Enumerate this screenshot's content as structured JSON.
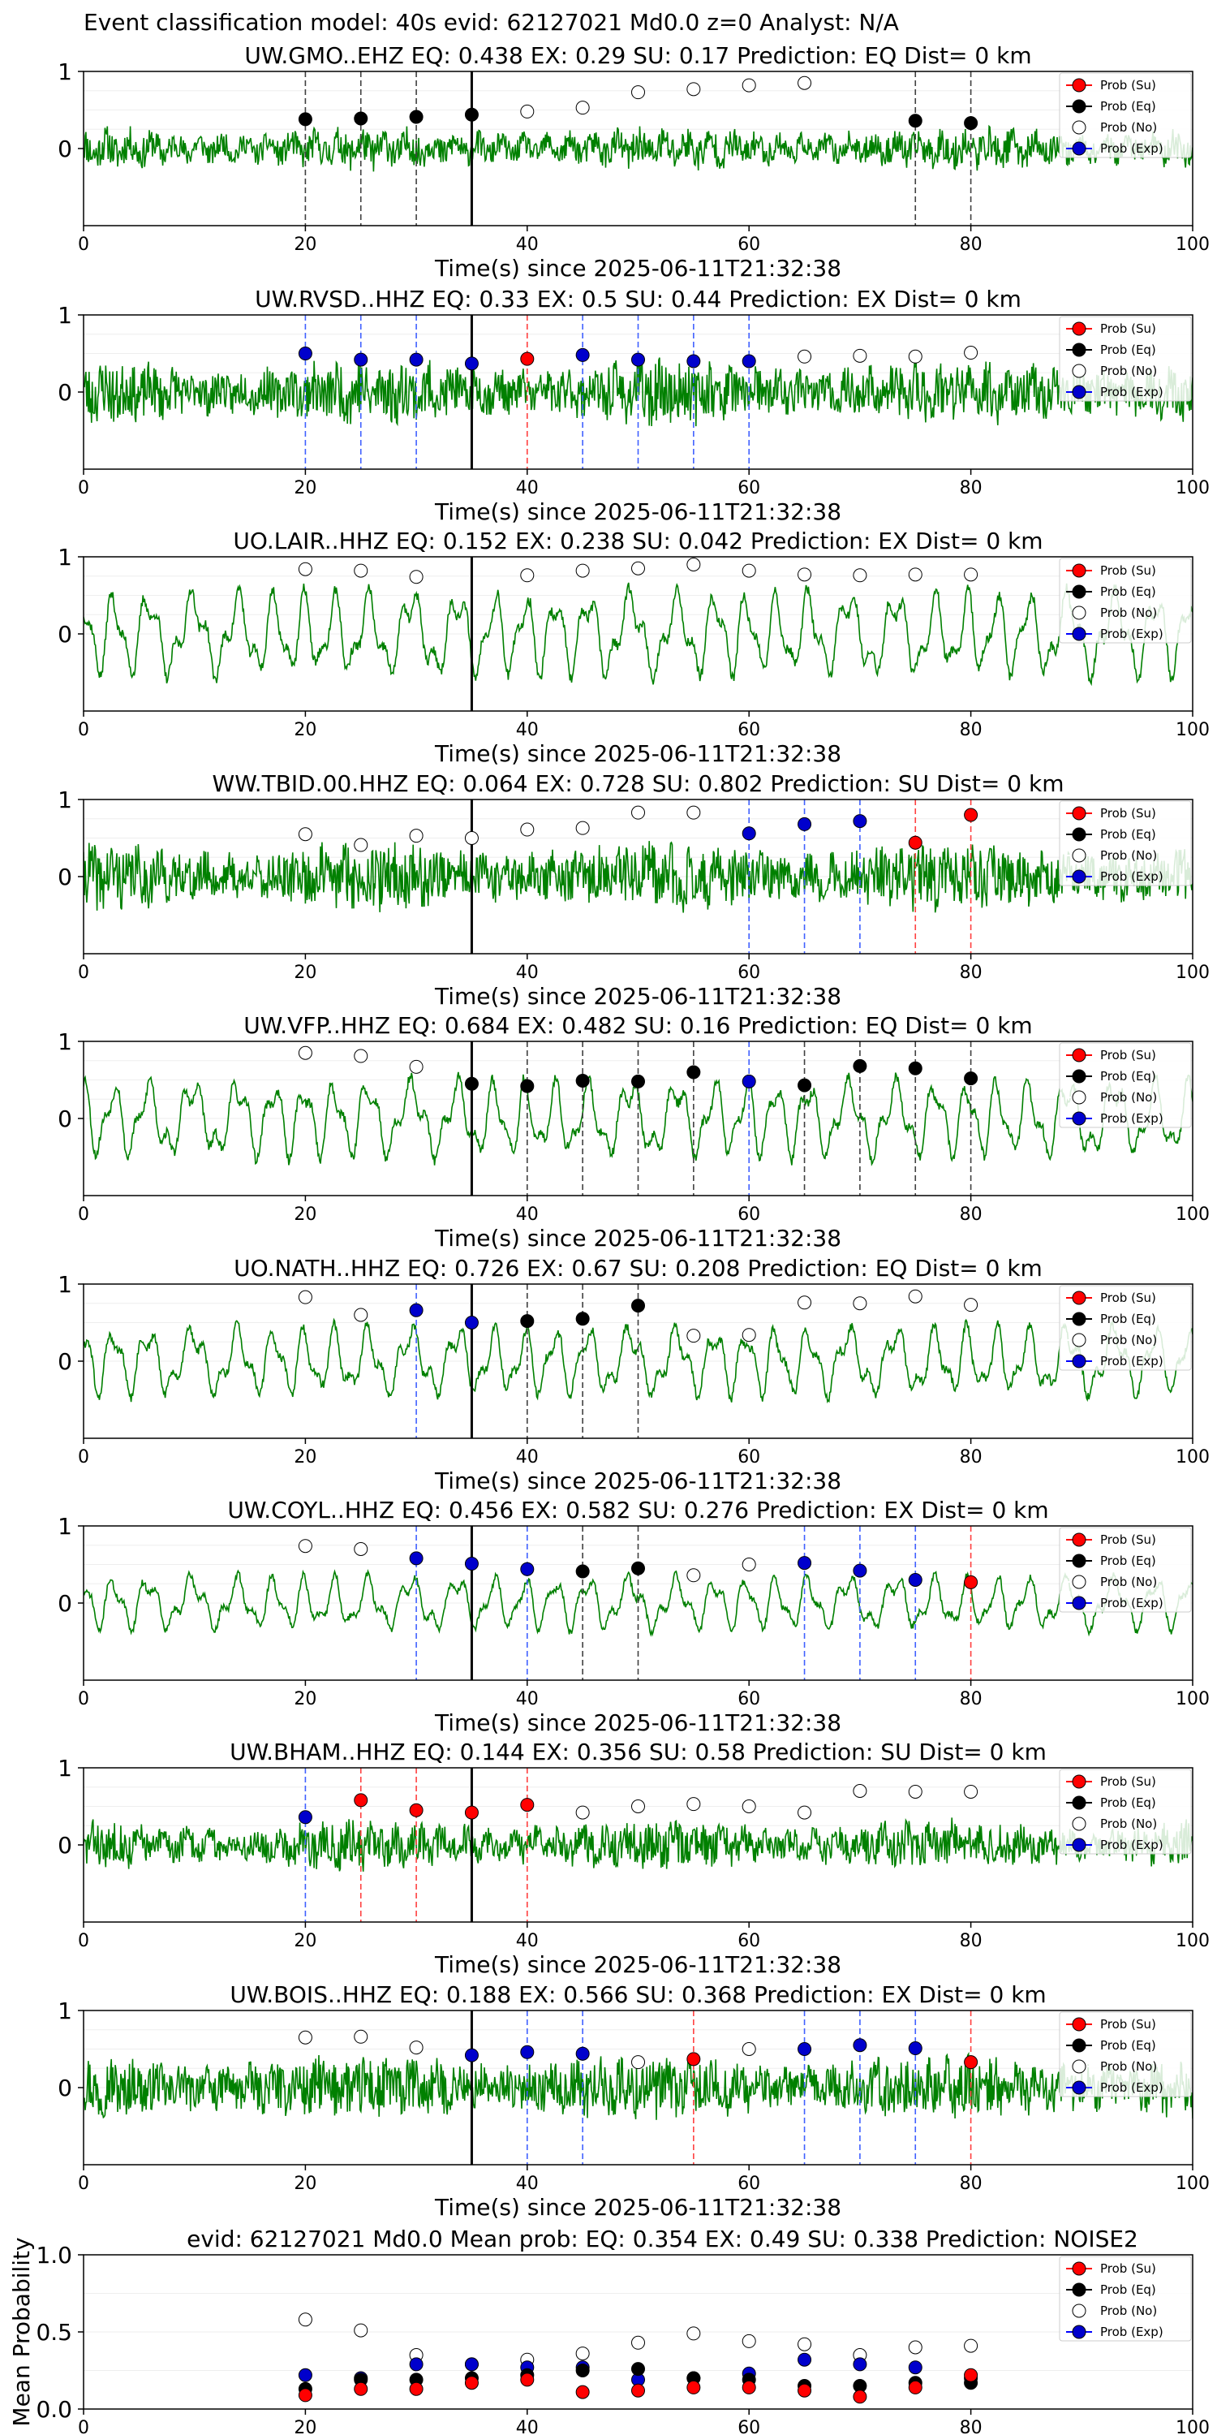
{
  "figure": {
    "suptitle": "Event classification model: 40s evid: 62127021 Md0.0 z=0 Analyst: N/A",
    "colors": {
      "waveform": "#008000",
      "su": "#ff0000",
      "eq": "#000000",
      "no": "#ffffff",
      "exp": "#0000cc",
      "origin_line": "#000000"
    }
  },
  "chart_data": [
    {
      "type": "line",
      "station": "UW.GMO..EHZ",
      "title": "UW.GMO..EHZ   EQ: 0.438  EX: 0.29  SU: 0.17   Prediction: EQ    Dist= 0 km",
      "xlabel": "Time(s) since 2025-06-11T21:32:38",
      "xlim": [
        0,
        100
      ],
      "ylim": [
        -1,
        1
      ],
      "xticks": [
        "0",
        "20",
        "40",
        "60",
        "80",
        "100"
      ],
      "yticks": [
        "0",
        "1"
      ],
      "origin_time": 35,
      "waveform": {
        "style": "noise",
        "amp": 0.18,
        "seed": 11
      },
      "points": [
        {
          "x": 20,
          "y": 0.38,
          "cls": "eq"
        },
        {
          "x": 25,
          "y": 0.39,
          "cls": "eq"
        },
        {
          "x": 30,
          "y": 0.41,
          "cls": "eq"
        },
        {
          "x": 35,
          "y": 0.44,
          "cls": "eq"
        },
        {
          "x": 40,
          "y": 0.48,
          "cls": "no"
        },
        {
          "x": 45,
          "y": 0.53,
          "cls": "no"
        },
        {
          "x": 50,
          "y": 0.73,
          "cls": "no"
        },
        {
          "x": 55,
          "y": 0.77,
          "cls": "no"
        },
        {
          "x": 60,
          "y": 0.82,
          "cls": "no"
        },
        {
          "x": 65,
          "y": 0.85,
          "cls": "no"
        },
        {
          "x": 75,
          "y": 0.36,
          "cls": "eq"
        },
        {
          "x": 80,
          "y": 0.33,
          "cls": "eq"
        }
      ],
      "legend": [
        "Prob (Su)",
        "Prob (Eq)",
        "Prob (No)",
        "Prob (Exp)"
      ]
    },
    {
      "type": "line",
      "station": "UW.RVSD..HHZ",
      "title": "UW.RVSD..HHZ   EQ: 0.33  EX: 0.5  SU: 0.44   Prediction: EX    Dist= 0 km",
      "xlabel": "Time(s) since 2025-06-11T21:32:38",
      "xlim": [
        0,
        100
      ],
      "ylim": [
        -1,
        1
      ],
      "xticks": [
        "0",
        "20",
        "40",
        "60",
        "80",
        "100"
      ],
      "yticks": [
        "0",
        "1"
      ],
      "origin_time": 35,
      "waveform": {
        "style": "noise",
        "amp": 0.3,
        "seed": 23
      },
      "points": [
        {
          "x": 20,
          "y": 0.5,
          "cls": "exp"
        },
        {
          "x": 25,
          "y": 0.42,
          "cls": "exp"
        },
        {
          "x": 30,
          "y": 0.42,
          "cls": "exp"
        },
        {
          "x": 35,
          "y": 0.37,
          "cls": "exp"
        },
        {
          "x": 40,
          "y": 0.43,
          "cls": "su"
        },
        {
          "x": 45,
          "y": 0.48,
          "cls": "exp"
        },
        {
          "x": 50,
          "y": 0.42,
          "cls": "exp"
        },
        {
          "x": 55,
          "y": 0.4,
          "cls": "exp"
        },
        {
          "x": 60,
          "y": 0.4,
          "cls": "exp"
        },
        {
          "x": 65,
          "y": 0.46,
          "cls": "no"
        },
        {
          "x": 70,
          "y": 0.47,
          "cls": "no"
        },
        {
          "x": 75,
          "y": 0.46,
          "cls": "no"
        },
        {
          "x": 80,
          "y": 0.51,
          "cls": "no"
        }
      ],
      "legend": [
        "Prob (Su)",
        "Prob (Eq)",
        "Prob (No)",
        "Prob (Exp)"
      ]
    },
    {
      "type": "line",
      "station": "UO.LAIR..HHZ",
      "title": "UO.LAIR..HHZ   EQ: 0.152  EX: 0.238  SU: 0.042   Prediction: EX    Dist= 0 km",
      "xlabel": "Time(s) since 2025-06-11T21:32:38",
      "xlim": [
        0,
        100
      ],
      "ylim": [
        -1,
        1
      ],
      "xticks": [
        "0",
        "20",
        "40",
        "60",
        "80",
        "100"
      ],
      "yticks": [
        "0",
        "1"
      ],
      "origin_time": 35,
      "waveform": {
        "style": "wave",
        "amp": 0.55,
        "seed": 37
      },
      "points": [
        {
          "x": 20,
          "y": 0.84,
          "cls": "no"
        },
        {
          "x": 25,
          "y": 0.82,
          "cls": "no"
        },
        {
          "x": 30,
          "y": 0.74,
          "cls": "no"
        },
        {
          "x": 40,
          "y": 0.76,
          "cls": "no"
        },
        {
          "x": 45,
          "y": 0.82,
          "cls": "no"
        },
        {
          "x": 50,
          "y": 0.85,
          "cls": "no"
        },
        {
          "x": 55,
          "y": 0.9,
          "cls": "no"
        },
        {
          "x": 60,
          "y": 0.82,
          "cls": "no"
        },
        {
          "x": 65,
          "y": 0.77,
          "cls": "no"
        },
        {
          "x": 70,
          "y": 0.76,
          "cls": "no"
        },
        {
          "x": 75,
          "y": 0.77,
          "cls": "no"
        },
        {
          "x": 80,
          "y": 0.77,
          "cls": "no"
        }
      ],
      "legend": [
        "Prob (Su)",
        "Prob (Eq)",
        "Prob (No)",
        "Prob (Exp)"
      ]
    },
    {
      "type": "line",
      "station": "WW.TBID.00.HHZ",
      "title": "WW.TBID.00.HHZ   EQ: 0.064  EX: 0.728  SU: 0.802   Prediction: SU    Dist= 0 km",
      "xlabel": "Time(s) since 2025-06-11T21:32:38",
      "xlim": [
        0,
        100
      ],
      "ylim": [
        -1,
        1
      ],
      "xticks": [
        "0",
        "20",
        "40",
        "60",
        "80",
        "100"
      ],
      "yticks": [
        "0",
        "1"
      ],
      "origin_time": 35,
      "waveform": {
        "style": "noise",
        "amp": 0.32,
        "seed": 41
      },
      "points": [
        {
          "x": 20,
          "y": 0.55,
          "cls": "no"
        },
        {
          "x": 25,
          "y": 0.41,
          "cls": "no"
        },
        {
          "x": 30,
          "y": 0.53,
          "cls": "no"
        },
        {
          "x": 35,
          "y": 0.5,
          "cls": "no"
        },
        {
          "x": 40,
          "y": 0.61,
          "cls": "no"
        },
        {
          "x": 45,
          "y": 0.63,
          "cls": "no"
        },
        {
          "x": 50,
          "y": 0.83,
          "cls": "no"
        },
        {
          "x": 55,
          "y": 0.83,
          "cls": "no"
        },
        {
          "x": 60,
          "y": 0.56,
          "cls": "exp"
        },
        {
          "x": 65,
          "y": 0.68,
          "cls": "exp"
        },
        {
          "x": 70,
          "y": 0.72,
          "cls": "exp"
        },
        {
          "x": 75,
          "y": 0.44,
          "cls": "su"
        },
        {
          "x": 80,
          "y": 0.8,
          "cls": "su"
        }
      ],
      "legend": [
        "Prob (Su)",
        "Prob (Eq)",
        "Prob (No)",
        "Prob (Exp)"
      ]
    },
    {
      "type": "line",
      "station": "UW.VFP..HHZ",
      "title": "UW.VFP..HHZ   EQ: 0.684  EX: 0.482  SU: 0.16   Prediction: EQ    Dist= 0 km",
      "xlabel": "Time(s) since 2025-06-11T21:32:38",
      "xlim": [
        0,
        100
      ],
      "ylim": [
        -1,
        1
      ],
      "xticks": [
        "0",
        "20",
        "40",
        "60",
        "80",
        "100"
      ],
      "yticks": [
        "0",
        "1"
      ],
      "origin_time": 35,
      "waveform": {
        "style": "wave",
        "amp": 0.5,
        "seed": 53
      },
      "points": [
        {
          "x": 20,
          "y": 0.85,
          "cls": "no"
        },
        {
          "x": 25,
          "y": 0.81,
          "cls": "no"
        },
        {
          "x": 30,
          "y": 0.67,
          "cls": "no"
        },
        {
          "x": 35,
          "y": 0.45,
          "cls": "eq"
        },
        {
          "x": 40,
          "y": 0.42,
          "cls": "eq"
        },
        {
          "x": 45,
          "y": 0.49,
          "cls": "eq"
        },
        {
          "x": 50,
          "y": 0.48,
          "cls": "eq"
        },
        {
          "x": 55,
          "y": 0.6,
          "cls": "eq"
        },
        {
          "x": 60,
          "y": 0.48,
          "cls": "exp"
        },
        {
          "x": 65,
          "y": 0.43,
          "cls": "eq"
        },
        {
          "x": 70,
          "y": 0.68,
          "cls": "eq"
        },
        {
          "x": 75,
          "y": 0.65,
          "cls": "eq"
        },
        {
          "x": 80,
          "y": 0.52,
          "cls": "eq"
        }
      ],
      "legend": [
        "Prob (Su)",
        "Prob (Eq)",
        "Prob (No)",
        "Prob (Exp)"
      ]
    },
    {
      "type": "line",
      "station": "UO.NATH..HHZ",
      "title": "UO.NATH..HHZ   EQ: 0.726  EX: 0.67  SU: 0.208   Prediction: EQ    Dist= 0 km",
      "xlabel": "Time(s) since 2025-06-11T21:32:38",
      "xlim": [
        0,
        100
      ],
      "ylim": [
        -1,
        1
      ],
      "xticks": [
        "0",
        "20",
        "40",
        "60",
        "80",
        "100"
      ],
      "yticks": [
        "0",
        "1"
      ],
      "origin_time": 35,
      "waveform": {
        "style": "wave",
        "amp": 0.45,
        "seed": 61
      },
      "points": [
        {
          "x": 20,
          "y": 0.83,
          "cls": "no"
        },
        {
          "x": 25,
          "y": 0.6,
          "cls": "no"
        },
        {
          "x": 30,
          "y": 0.66,
          "cls": "exp"
        },
        {
          "x": 35,
          "y": 0.5,
          "cls": "exp"
        },
        {
          "x": 40,
          "y": 0.52,
          "cls": "eq"
        },
        {
          "x": 45,
          "y": 0.55,
          "cls": "eq"
        },
        {
          "x": 50,
          "y": 0.72,
          "cls": "eq"
        },
        {
          "x": 55,
          "y": 0.33,
          "cls": "no"
        },
        {
          "x": 60,
          "y": 0.34,
          "cls": "no"
        },
        {
          "x": 65,
          "y": 0.76,
          "cls": "no"
        },
        {
          "x": 70,
          "y": 0.75,
          "cls": "no"
        },
        {
          "x": 75,
          "y": 0.84,
          "cls": "no"
        },
        {
          "x": 80,
          "y": 0.73,
          "cls": "no"
        }
      ],
      "legend": [
        "Prob (Su)",
        "Prob (Eq)",
        "Prob (No)",
        "Prob (Exp)"
      ]
    },
    {
      "type": "line",
      "station": "UW.COYL..HHZ",
      "title": "UW.COYL..HHZ   EQ: 0.456  EX: 0.582  SU: 0.276   Prediction: EX    Dist= 0 km",
      "xlabel": "Time(s) since 2025-06-11T21:32:38",
      "xlim": [
        0,
        100
      ],
      "ylim": [
        -1,
        1
      ],
      "xticks": [
        "0",
        "20",
        "40",
        "60",
        "80",
        "100"
      ],
      "yticks": [
        "0",
        "1"
      ],
      "origin_time": 35,
      "waveform": {
        "style": "wave",
        "amp": 0.35,
        "seed": 71
      },
      "points": [
        {
          "x": 20,
          "y": 0.74,
          "cls": "no"
        },
        {
          "x": 25,
          "y": 0.7,
          "cls": "no"
        },
        {
          "x": 30,
          "y": 0.58,
          "cls": "exp"
        },
        {
          "x": 35,
          "y": 0.51,
          "cls": "exp"
        },
        {
          "x": 40,
          "y": 0.44,
          "cls": "exp"
        },
        {
          "x": 45,
          "y": 0.41,
          "cls": "eq"
        },
        {
          "x": 50,
          "y": 0.45,
          "cls": "eq"
        },
        {
          "x": 55,
          "y": 0.36,
          "cls": "no"
        },
        {
          "x": 60,
          "y": 0.5,
          "cls": "no"
        },
        {
          "x": 65,
          "y": 0.52,
          "cls": "exp"
        },
        {
          "x": 70,
          "y": 0.42,
          "cls": "exp"
        },
        {
          "x": 75,
          "y": 0.3,
          "cls": "exp"
        },
        {
          "x": 80,
          "y": 0.27,
          "cls": "su"
        }
      ],
      "legend": [
        "Prob (Su)",
        "Prob (Eq)",
        "Prob (No)",
        "Prob (Exp)"
      ]
    },
    {
      "type": "line",
      "station": "UW.BHAM..HHZ",
      "title": "UW.BHAM..HHZ   EQ: 0.144  EX: 0.356  SU: 0.58   Prediction: SU    Dist= 0 km",
      "xlabel": "Time(s) since 2025-06-11T21:32:38",
      "xlim": [
        0,
        100
      ],
      "ylim": [
        -1,
        1
      ],
      "xticks": [
        "0",
        "20",
        "40",
        "60",
        "80",
        "100"
      ],
      "yticks": [
        "0",
        "1"
      ],
      "origin_time": 35,
      "waveform": {
        "style": "noise",
        "amp": 0.22,
        "seed": 83
      },
      "points": [
        {
          "x": 20,
          "y": 0.36,
          "cls": "exp"
        },
        {
          "x": 25,
          "y": 0.58,
          "cls": "su"
        },
        {
          "x": 30,
          "y": 0.45,
          "cls": "su"
        },
        {
          "x": 35,
          "y": 0.42,
          "cls": "su"
        },
        {
          "x": 40,
          "y": 0.52,
          "cls": "su"
        },
        {
          "x": 45,
          "y": 0.42,
          "cls": "no"
        },
        {
          "x": 50,
          "y": 0.5,
          "cls": "no"
        },
        {
          "x": 55,
          "y": 0.53,
          "cls": "no"
        },
        {
          "x": 60,
          "y": 0.5,
          "cls": "no"
        },
        {
          "x": 65,
          "y": 0.42,
          "cls": "no"
        },
        {
          "x": 70,
          "y": 0.7,
          "cls": "no"
        },
        {
          "x": 75,
          "y": 0.69,
          "cls": "no"
        },
        {
          "x": 80,
          "y": 0.69,
          "cls": "no"
        }
      ],
      "legend": [
        "Prob (Su)",
        "Prob (Eq)",
        "Prob (No)",
        "Prob (Exp)"
      ]
    },
    {
      "type": "line",
      "station": "UW.BOIS..HHZ",
      "title": "UW.BOIS..HHZ   EQ: 0.188  EX: 0.566  SU: 0.368   Prediction: EX    Dist= 0 km",
      "xlabel": "Time(s) since 2025-06-11T21:32:38",
      "xlim": [
        0,
        100
      ],
      "ylim": [
        -1,
        1
      ],
      "xticks": [
        "0",
        "20",
        "40",
        "60",
        "80",
        "100"
      ],
      "yticks": [
        "0",
        "1"
      ],
      "origin_time": 35,
      "waveform": {
        "style": "noise",
        "amp": 0.3,
        "seed": 97
      },
      "points": [
        {
          "x": 20,
          "y": 0.65,
          "cls": "no"
        },
        {
          "x": 25,
          "y": 0.66,
          "cls": "no"
        },
        {
          "x": 30,
          "y": 0.52,
          "cls": "no"
        },
        {
          "x": 35,
          "y": 0.42,
          "cls": "exp"
        },
        {
          "x": 40,
          "y": 0.46,
          "cls": "exp"
        },
        {
          "x": 45,
          "y": 0.44,
          "cls": "exp"
        },
        {
          "x": 50,
          "y": 0.33,
          "cls": "no"
        },
        {
          "x": 55,
          "y": 0.37,
          "cls": "su"
        },
        {
          "x": 60,
          "y": 0.5,
          "cls": "no"
        },
        {
          "x": 65,
          "y": 0.5,
          "cls": "exp"
        },
        {
          "x": 70,
          "y": 0.55,
          "cls": "exp"
        },
        {
          "x": 75,
          "y": 0.51,
          "cls": "exp"
        },
        {
          "x": 80,
          "y": 0.33,
          "cls": "su"
        }
      ],
      "legend": [
        "Prob (Su)",
        "Prob (Eq)",
        "Prob (No)",
        "Prob (Exp)"
      ]
    },
    {
      "type": "scatter",
      "title": "evid: 62127021  Md0.0   Mean prob:    EQ: 0.354  EX: 0.49  SU: 0.338   Prediction: NOISE2",
      "xlabel": "",
      "ylabel": "Mean Probability",
      "xlim": [
        0,
        100
      ],
      "ylim": [
        0,
        1
      ],
      "xticks": [
        "0",
        "20",
        "40",
        "60",
        "80",
        "100"
      ],
      "yticks": [
        "0.0",
        "0.5",
        "1.0"
      ],
      "x": [
        20,
        25,
        30,
        35,
        40,
        45,
        50,
        55,
        60,
        65,
        70,
        75,
        80
      ],
      "series": [
        {
          "name": "Prob (Su)",
          "cls": "su",
          "values": [
            0.09,
            0.13,
            0.13,
            0.17,
            0.19,
            0.11,
            0.12,
            0.14,
            0.14,
            0.12,
            0.08,
            0.14,
            0.22
          ]
        },
        {
          "name": "Prob (Eq)",
          "cls": "eq",
          "values": [
            0.13,
            0.19,
            0.19,
            0.2,
            0.22,
            0.25,
            0.26,
            0.2,
            0.19,
            0.15,
            0.15,
            0.17,
            0.17
          ]
        },
        {
          "name": "Prob (No)",
          "cls": "no",
          "values": [
            0.58,
            0.51,
            0.35,
            0.29,
            0.32,
            0.36,
            0.43,
            0.49,
            0.44,
            0.42,
            0.35,
            0.4,
            0.41
          ]
        },
        {
          "name": "Prob (Exp)",
          "cls": "exp",
          "values": [
            0.22,
            0.2,
            0.29,
            0.29,
            0.27,
            0.27,
            0.19,
            0.2,
            0.23,
            0.32,
            0.29,
            0.27,
            0.2
          ]
        }
      ],
      "legend": [
        "Prob (Su)",
        "Prob (Eq)",
        "Prob (No)",
        "Prob (Exp)"
      ]
    }
  ]
}
